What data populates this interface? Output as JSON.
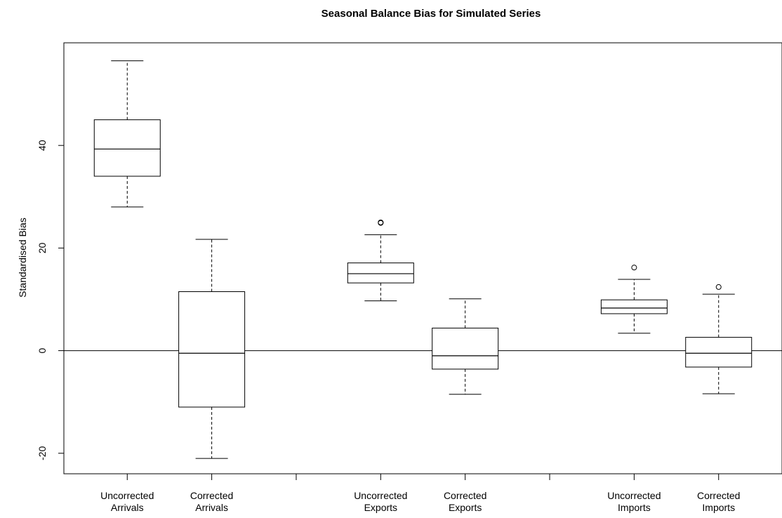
{
  "chart_data": {
    "type": "boxplot",
    "title": "Seasonal Balance Bias for Simulated Series",
    "xlabel": "",
    "ylabel": "Standardised Bias",
    "ylim": [
      -24,
      60
    ],
    "yticks": [
      -20,
      0,
      20,
      40
    ],
    "reference_line_y": 0,
    "grid": false,
    "positions": [
      1,
      2,
      3,
      4,
      5,
      6,
      7,
      8
    ],
    "xticks": [
      1,
      2,
      3,
      4,
      5,
      6,
      7,
      8
    ],
    "xlim": [
      0.25,
      8.75
    ],
    "boxes": [
      {
        "category": [
          "Uncorrected",
          "Arrivals"
        ],
        "position": 1,
        "whisker_low": 28,
        "q1": 34,
        "median": 39.3,
        "q3": 45,
        "whisker_high": 56.5,
        "outliers": []
      },
      {
        "category": [
          "Corrected",
          "Arrivals"
        ],
        "position": 2,
        "whisker_low": -21,
        "q1": -11,
        "median": -0.5,
        "q3": 11.5,
        "whisker_high": 21.7,
        "outliers": []
      },
      {
        "category": [
          "Uncorrected",
          "Exports"
        ],
        "position": 4,
        "whisker_low": 9.7,
        "q1": 13.2,
        "median": 15,
        "q3": 17.1,
        "whisker_high": 22.6,
        "outliers": [
          25,
          24.9
        ]
      },
      {
        "category": [
          "Corrected",
          "Exports"
        ],
        "position": 5,
        "whisker_low": -8.5,
        "q1": -3.6,
        "median": -1,
        "q3": 4.4,
        "whisker_high": 10.1,
        "outliers": []
      },
      {
        "category": [
          "Uncorrected",
          "Imports"
        ],
        "position": 7,
        "whisker_low": 3.4,
        "q1": 7.2,
        "median": 8.3,
        "q3": 9.9,
        "whisker_high": 13.9,
        "outliers": [
          16.2
        ]
      },
      {
        "category": [
          "Corrected",
          "Imports"
        ],
        "position": 8,
        "whisker_low": -8.4,
        "q1": -3.2,
        "median": -0.5,
        "q3": 2.6,
        "whisker_high": 11,
        "outliers": [
          12.4
        ]
      }
    ]
  }
}
